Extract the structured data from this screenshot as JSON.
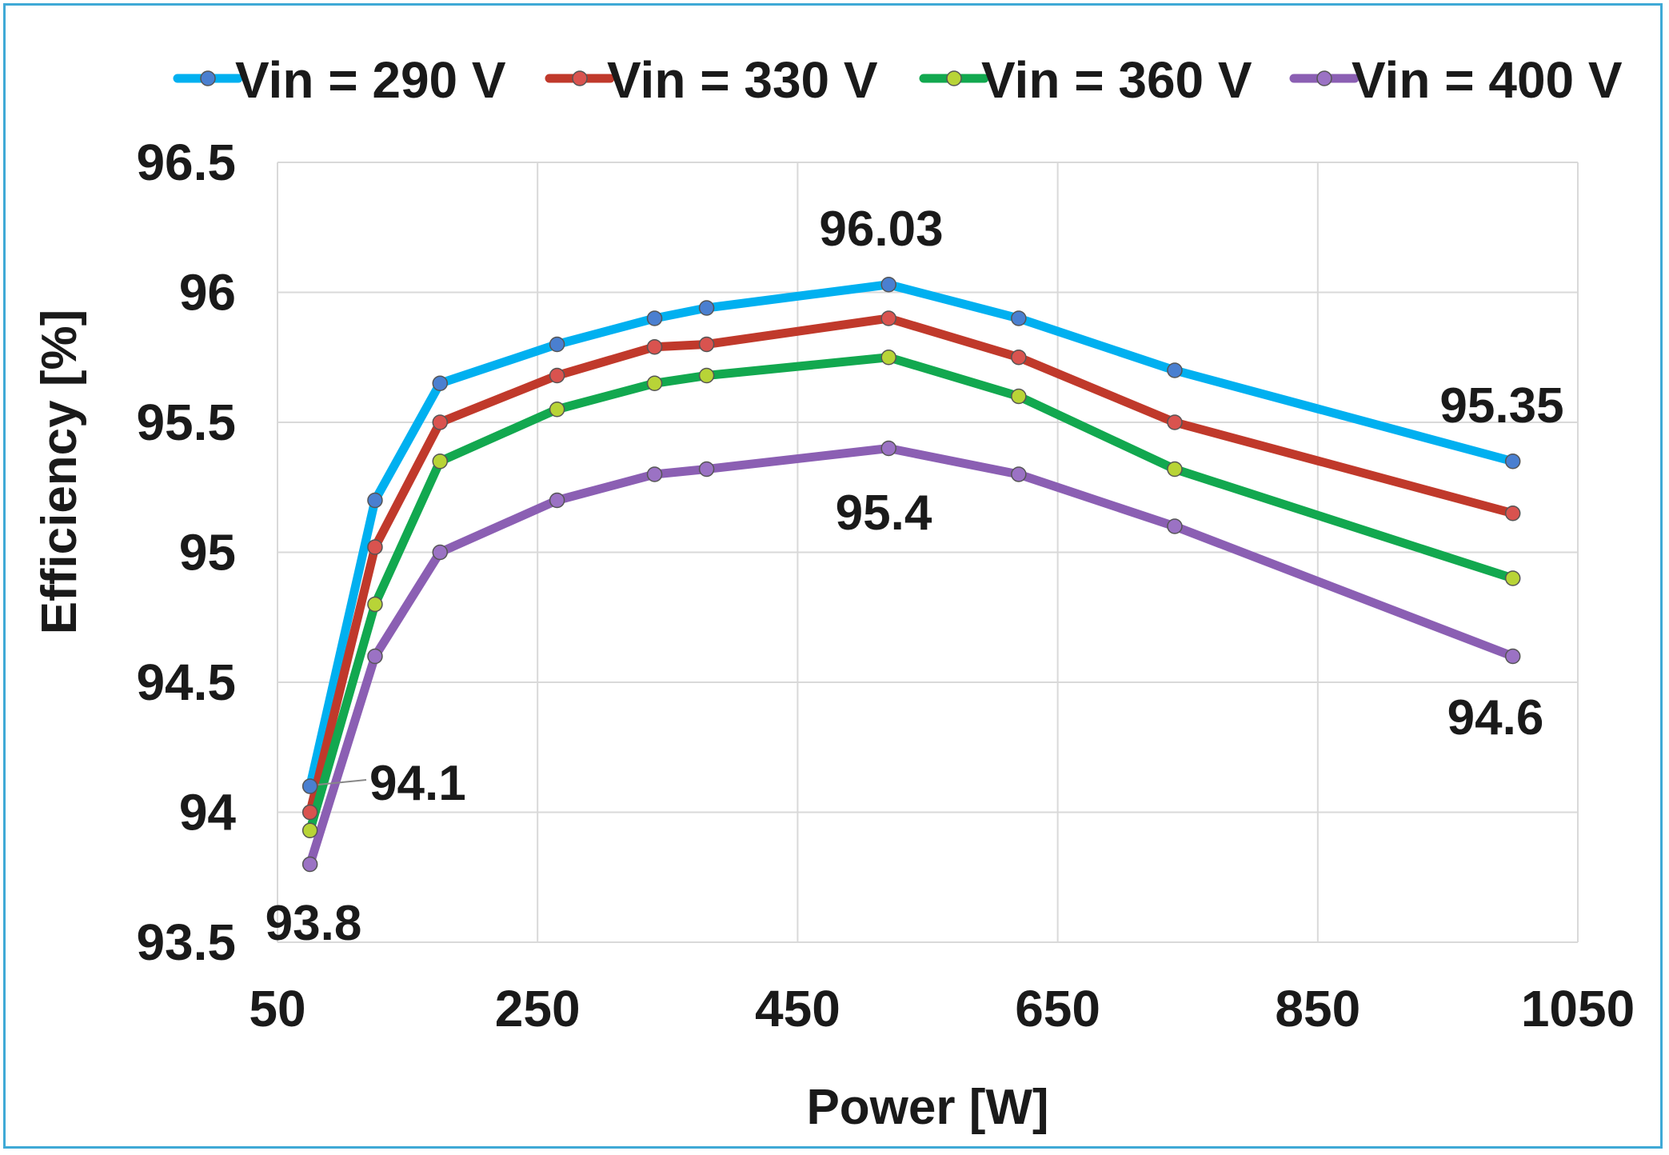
{
  "chart_data": {
    "type": "line",
    "title": "",
    "xlabel": "Power [W]",
    "ylabel": "Efficiency [%]",
    "xlim": [
      50,
      1050
    ],
    "ylim": [
      93.5,
      96.5
    ],
    "xticks": [
      50,
      250,
      450,
      650,
      850,
      1050
    ],
    "yticks": [
      93.5,
      94,
      94.5,
      95,
      95.5,
      96,
      96.5
    ],
    "grid": true,
    "legend_position": "top",
    "x": [
      75,
      125,
      175,
      265,
      340,
      380,
      520,
      620,
      740,
      1000
    ],
    "series": [
      {
        "name": "Vin = 290 V",
        "color": "#00b0f0",
        "marker": "#4a7fd0",
        "values": [
          94.1,
          95.2,
          95.65,
          95.8,
          95.9,
          95.94,
          96.03,
          95.9,
          95.7,
          95.35
        ]
      },
      {
        "name": "Vin = 330 V",
        "color": "#c0392b",
        "marker": "#d9534f",
        "values": [
          94.0,
          95.02,
          95.5,
          95.68,
          95.79,
          95.8,
          95.9,
          95.75,
          95.5,
          95.15
        ]
      },
      {
        "name": "Vin = 360 V",
        "color": "#12a84f",
        "marker": "#b8d437",
        "values": [
          93.93,
          94.8,
          95.35,
          95.55,
          95.65,
          95.68,
          95.75,
          95.6,
          95.32,
          94.9
        ]
      },
      {
        "name": "Vin = 400 V",
        "color": "#8b5fb3",
        "marker": "#9b72c4",
        "values": [
          93.8,
          94.6,
          95.0,
          95.2,
          95.3,
          95.32,
          95.4,
          95.3,
          95.1,
          94.6
        ]
      }
    ],
    "annotations": [
      {
        "text": "96.03"
      },
      {
        "text": "95.35"
      },
      {
        "text": "95.4"
      },
      {
        "text": "94.6"
      },
      {
        "text": "94.1"
      },
      {
        "text": "93.8"
      }
    ]
  }
}
